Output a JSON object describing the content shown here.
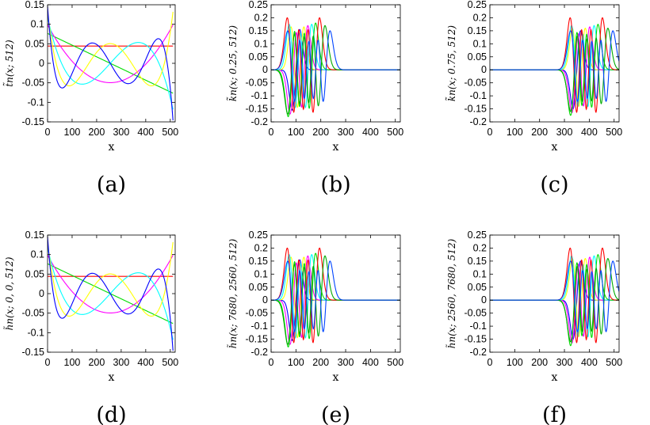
{
  "figure": {
    "colors": [
      "#ff0000",
      "#00dd00",
      "#0000ff",
      "#00ffff",
      "#ff00ff",
      "#ffff00",
      "#00aa00",
      "#0044ff"
    ]
  },
  "chart_data": [
    {
      "type": "line",
      "panel": "a",
      "caption": "(a)",
      "xlabel": "x",
      "ylabel": "t̃n(x; 512)",
      "xlim": [
        0,
        520
      ],
      "ylim": [
        -0.15,
        0.15
      ],
      "xticks": [
        0,
        100,
        200,
        300,
        400,
        500
      ],
      "yticks": [
        0.15,
        0.1,
        0.05,
        0,
        -0.05,
        -0.1,
        -0.15
      ],
      "ytick_labels": [
        "0.15",
        "0.1",
        "0.05",
        "0",
        "-0.05",
        "-0.1",
        "-0.15"
      ],
      "family": "polynomial",
      "series": [
        {
          "color": "#ff0000",
          "order": 0,
          "amp": 0.0442,
          "x": [
            0,
            511
          ]
        },
        {
          "color": "#00dd00",
          "order": 1,
          "amp": 0.0765,
          "x": [
            0,
            511
          ]
        },
        {
          "color": "#ff00ff",
          "order": 2,
          "amp": 0.0985,
          "x": [
            0,
            511
          ]
        },
        {
          "color": "#00ffff",
          "order": 3,
          "amp": 0.118,
          "x": [
            0,
            511
          ]
        },
        {
          "color": "#ffff00",
          "order": 4,
          "amp": 0.132,
          "x": [
            0,
            511
          ]
        },
        {
          "color": "#0000ff",
          "order": 5,
          "amp": 0.146,
          "x": [
            0,
            511
          ]
        }
      ]
    },
    {
      "type": "line",
      "panel": "b",
      "caption": "(b)",
      "xlabel": "x",
      "ylabel": "k̃n(x; 0.25, 512)",
      "xlim": [
        0,
        520
      ],
      "ylim": [
        -0.2,
        0.25
      ],
      "xticks": [
        0,
        100,
        200,
        300,
        400,
        500
      ],
      "yticks": [
        0.25,
        0.2,
        0.15,
        0.1,
        0.05,
        0,
        -0.05,
        -0.1,
        -0.15,
        -0.2
      ],
      "ytick_labels": [
        "0.25",
        "0.2",
        "0.15",
        "0.1",
        "0.05",
        "0",
        "-0.05",
        "-0.1",
        "-0.15",
        "-0.2"
      ],
      "family": "wave",
      "series": [
        {
          "color": "#0000ff",
          "center": 100,
          "amp": 0.155,
          "order": 1
        },
        {
          "color": "#ffff00",
          "center": 106,
          "amp": 0.165,
          "order": 2
        },
        {
          "color": "#ff00ff",
          "center": 112,
          "amp": 0.17,
          "order": 3
        },
        {
          "color": "#00ffff",
          "center": 118,
          "amp": 0.175,
          "order": 4
        },
        {
          "color": "#00dd00",
          "center": 124,
          "amp": 0.18,
          "order": 5
        },
        {
          "color": "#ff0000",
          "center": 130,
          "amp": 0.2,
          "order": 6
        },
        {
          "color": "#00aa00",
          "center": 142,
          "amp": 0.17,
          "order": 7
        },
        {
          "color": "#0044ff",
          "center": 152,
          "amp": 0.15,
          "order": 8
        }
      ]
    },
    {
      "type": "line",
      "panel": "c",
      "caption": "(c)",
      "xlabel": "x",
      "ylabel": "k̃n(x; 0.75, 512)",
      "xlim": [
        0,
        520
      ],
      "ylim": [
        -0.2,
        0.25
      ],
      "xticks": [
        0,
        100,
        200,
        300,
        400,
        500
      ],
      "yticks": [
        0.25,
        0.2,
        0.15,
        0.1,
        0.05,
        0,
        -0.05,
        -0.1,
        -0.15,
        -0.2
      ],
      "ytick_labels": [
        "0.25",
        "0.2",
        "0.15",
        "0.1",
        "0.05",
        "0",
        "-0.05",
        "-0.1",
        "-0.15",
        "-0.2"
      ],
      "family": "wave",
      "series": [
        {
          "color": "#0000ff",
          "center": 350,
          "amp": 0.15,
          "order": 1
        },
        {
          "color": "#ffff00",
          "center": 358,
          "amp": 0.16,
          "order": 2
        },
        {
          "color": "#ff00ff",
          "center": 366,
          "amp": 0.165,
          "order": 3
        },
        {
          "color": "#00ffff",
          "center": 374,
          "amp": 0.17,
          "order": 4
        },
        {
          "color": "#00dd00",
          "center": 380,
          "amp": 0.175,
          "order": 5
        },
        {
          "color": "#ff0000",
          "center": 388,
          "amp": 0.2,
          "order": 6
        },
        {
          "color": "#00aa00",
          "center": 400,
          "amp": 0.16,
          "order": 7
        },
        {
          "color": "#0044ff",
          "center": 410,
          "amp": 0.15,
          "order": 8
        }
      ]
    },
    {
      "type": "line",
      "panel": "d",
      "caption": "(d)",
      "xlabel": "x",
      "ylabel": "h̃n(x; 0, 0, 512)",
      "xlim": [
        0,
        520
      ],
      "ylim": [
        -0.15,
        0.15
      ],
      "xticks": [
        0,
        100,
        200,
        300,
        400,
        500
      ],
      "yticks": [
        0.15,
        0.1,
        0.05,
        0,
        -0.05,
        -0.1,
        -0.15
      ],
      "ytick_labels": [
        "0.15",
        "0.1",
        "0.05",
        "0",
        "-0.05",
        "-0.1",
        "-0.15"
      ],
      "family": "polynomial",
      "series": [
        {
          "color": "#ff0000",
          "order": 0,
          "amp": 0.0442,
          "x": [
            0,
            511
          ]
        },
        {
          "color": "#00dd00",
          "order": 1,
          "amp": 0.0765,
          "x": [
            0,
            511
          ]
        },
        {
          "color": "#ff00ff",
          "order": 2,
          "amp": 0.0985,
          "x": [
            0,
            511
          ]
        },
        {
          "color": "#00ffff",
          "order": 3,
          "amp": 0.118,
          "x": [
            0,
            511
          ]
        },
        {
          "color": "#ffff00",
          "order": 4,
          "amp": 0.132,
          "x": [
            0,
            511
          ]
        },
        {
          "color": "#0000ff",
          "order": 5,
          "amp": 0.146,
          "x": [
            0,
            511
          ]
        }
      ]
    },
    {
      "type": "line",
      "panel": "e",
      "caption": "(e)",
      "xlabel": "x",
      "ylabel": "h̃n(x; 7680, 2560, 512)",
      "xlim": [
        0,
        520
      ],
      "ylim": [
        -0.2,
        0.25
      ],
      "xticks": [
        0,
        100,
        200,
        300,
        400,
        500
      ],
      "yticks": [
        0.25,
        0.2,
        0.15,
        0.1,
        0.05,
        0,
        -0.05,
        -0.1,
        -0.15,
        -0.2
      ],
      "ytick_labels": [
        "0.25",
        "0.2",
        "0.15",
        "0.1",
        "0.05",
        "0",
        "-0.05",
        "-0.1",
        "-0.15",
        "-0.2"
      ],
      "family": "wave",
      "series": [
        {
          "color": "#0000ff",
          "center": 100,
          "amp": 0.155,
          "order": 1
        },
        {
          "color": "#ffff00",
          "center": 106,
          "amp": 0.165,
          "order": 2
        },
        {
          "color": "#ff00ff",
          "center": 112,
          "amp": 0.17,
          "order": 3
        },
        {
          "color": "#00ffff",
          "center": 118,
          "amp": 0.175,
          "order": 4
        },
        {
          "color": "#00dd00",
          "center": 124,
          "amp": 0.18,
          "order": 5
        },
        {
          "color": "#ff0000",
          "center": 130,
          "amp": 0.2,
          "order": 6
        },
        {
          "color": "#00aa00",
          "center": 142,
          "amp": 0.17,
          "order": 7
        },
        {
          "color": "#0044ff",
          "center": 152,
          "amp": 0.15,
          "order": 8
        }
      ]
    },
    {
      "type": "line",
      "panel": "f",
      "caption": "(f)",
      "xlabel": "x",
      "ylabel": "h̃n(x; 2560, 7680, 512)",
      "xlim": [
        0,
        520
      ],
      "ylim": [
        -0.2,
        0.25
      ],
      "xticks": [
        0,
        100,
        200,
        300,
        400,
        500
      ],
      "yticks": [
        0.25,
        0.2,
        0.15,
        0.1,
        0.05,
        0,
        -0.05,
        -0.1,
        -0.15,
        -0.2
      ],
      "ytick_labels": [
        "0.25",
        "0.2",
        "0.15",
        "0.1",
        "0.05",
        "0",
        "-0.05",
        "-0.1",
        "-0.15",
        "-0.2"
      ],
      "family": "wave",
      "series": [
        {
          "color": "#0000ff",
          "center": 350,
          "amp": 0.15,
          "order": 1
        },
        {
          "color": "#ffff00",
          "center": 358,
          "amp": 0.16,
          "order": 2
        },
        {
          "color": "#ff00ff",
          "center": 366,
          "amp": 0.165,
          "order": 3
        },
        {
          "color": "#00ffff",
          "center": 374,
          "amp": 0.17,
          "order": 4
        },
        {
          "color": "#00dd00",
          "center": 380,
          "amp": 0.175,
          "order": 5
        },
        {
          "color": "#ff0000",
          "center": 388,
          "amp": 0.2,
          "order": 6
        },
        {
          "color": "#00aa00",
          "center": 400,
          "amp": 0.16,
          "order": 7
        },
        {
          "color": "#0044ff",
          "center": 410,
          "amp": 0.15,
          "order": 8
        }
      ]
    }
  ]
}
